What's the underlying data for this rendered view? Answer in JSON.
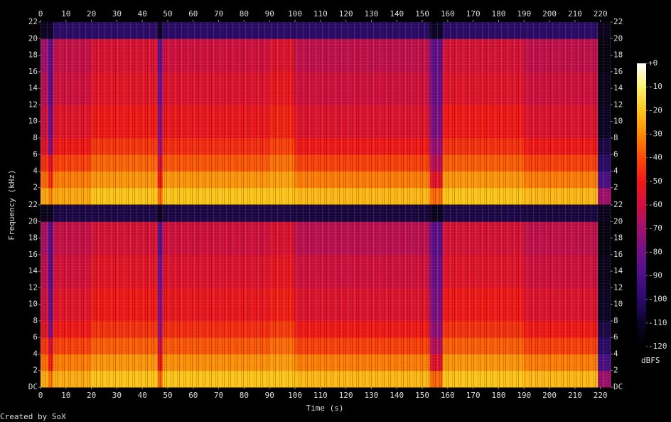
{
  "chart_data": [
    {
      "type": "spectrogram",
      "ylabel": "Frequency (kHz)",
      "xlim": [
        0,
        224
      ],
      "xticks": [
        0,
        10,
        20,
        30,
        40,
        50,
        60,
        70,
        80,
        90,
        100,
        110,
        120,
        130,
        140,
        150,
        160,
        170,
        180,
        190,
        200,
        210,
        220
      ],
      "ylim": [
        0,
        22
      ],
      "yticks": [
        2,
        4,
        6,
        8,
        10,
        12,
        14,
        16,
        18,
        20,
        22
      ],
      "time_edges": [
        0,
        3,
        5,
        20,
        46,
        48,
        90,
        100,
        153,
        158,
        190,
        219,
        224
      ],
      "freq_edges": [
        0,
        2,
        4,
        6,
        8,
        12,
        16,
        20,
        22
      ],
      "levels": [
        [
          -25,
          -35,
          -45,
          -55,
          -60,
          -65,
          -70,
          -110
        ],
        [
          -30,
          -45,
          -55,
          -75,
          -80,
          -85,
          -85,
          -110
        ],
        [
          -25,
          -32,
          -42,
          -50,
          -55,
          -60,
          -62,
          -100
        ],
        [
          -20,
          -28,
          -36,
          -44,
          -50,
          -54,
          -57,
          -100
        ],
        [
          -35,
          -50,
          -60,
          -70,
          -75,
          -80,
          -85,
          -110
        ],
        [
          -20,
          -28,
          -38,
          -46,
          -52,
          -56,
          -60,
          -100
        ],
        [
          -20,
          -26,
          -34,
          -42,
          -48,
          -52,
          -56,
          -100
        ],
        [
          -22,
          -32,
          -42,
          -50,
          -56,
          -60,
          -63,
          -100
        ],
        [
          -35,
          -55,
          -65,
          -72,
          -78,
          -82,
          -85,
          -110
        ],
        [
          -20,
          -28,
          -37,
          -45,
          -50,
          -55,
          -58,
          -100
        ],
        [
          -22,
          -32,
          -42,
          -50,
          -56,
          -60,
          -63,
          -100
        ],
        [
          -70,
          -90,
          -100,
          -105,
          -110,
          -112,
          -115,
          -112
        ]
      ],
      "colorbar": {
        "label": "dBFS",
        "zlim": [
          -120,
          0
        ],
        "zticks": [
          {
            "value": 0,
            "label": "+0"
          },
          -10,
          -20,
          -30,
          -40,
          -50,
          -60,
          -70,
          -80,
          -90,
          -100,
          -110,
          -120
        ],
        "colormap": [
          "#000000",
          "#0b0428",
          "#2a0a6a",
          "#4b0f8a",
          "#72108a",
          "#a01070",
          "#d01040",
          "#f01818",
          "#fc4a08",
          "#fd8a06",
          "#fec51a",
          "#fff070",
          "#ffffff"
        ]
      }
    },
    {
      "type": "spectrogram",
      "xlabel": "Time (s)",
      "xlim": [
        0,
        224
      ],
      "xticks": [
        0,
        10,
        20,
        30,
        40,
        50,
        60,
        70,
        80,
        90,
        100,
        110,
        120,
        130,
        140,
        150,
        160,
        170,
        180,
        190,
        200,
        210,
        220
      ],
      "ylim": [
        0,
        22
      ],
      "yticks": [
        {
          "value": 0,
          "label": "DC"
        },
        2,
        4,
        6,
        8,
        10,
        12,
        14,
        16,
        18,
        20,
        22
      ],
      "time_edges": [
        0,
        3,
        5,
        20,
        46,
        48,
        90,
        100,
        153,
        158,
        190,
        219,
        224
      ],
      "freq_edges": [
        0,
        2,
        4,
        6,
        8,
        12,
        16,
        20,
        22
      ],
      "levels": [
        [
          -24,
          -34,
          -44,
          -54,
          -60,
          -64,
          -68,
          -112
        ],
        [
          -32,
          -48,
          -58,
          -76,
          -82,
          -86,
          -86,
          -112
        ],
        [
          -24,
          -32,
          -42,
          -50,
          -55,
          -59,
          -62,
          -105
        ],
        [
          -20,
          -28,
          -37,
          -45,
          -50,
          -54,
          -58,
          -105
        ],
        [
          -36,
          -52,
          -62,
          -72,
          -76,
          -80,
          -86,
          -112
        ],
        [
          -20,
          -29,
          -38,
          -46,
          -52,
          -56,
          -60,
          -105
        ],
        [
          -20,
          -27,
          -35,
          -43,
          -49,
          -53,
          -57,
          -105
        ],
        [
          -22,
          -32,
          -42,
          -50,
          -56,
          -60,
          -64,
          -106
        ],
        [
          -36,
          -56,
          -66,
          -74,
          -78,
          -82,
          -86,
          -112
        ],
        [
          -20,
          -28,
          -37,
          -45,
          -50,
          -55,
          -58,
          -105
        ],
        [
          -22,
          -32,
          -42,
          -50,
          -56,
          -60,
          -63,
          -106
        ],
        [
          -70,
          -90,
          -100,
          -105,
          -110,
          -112,
          -115,
          -112
        ]
      ]
    }
  ],
  "footer": "Created by SoX"
}
